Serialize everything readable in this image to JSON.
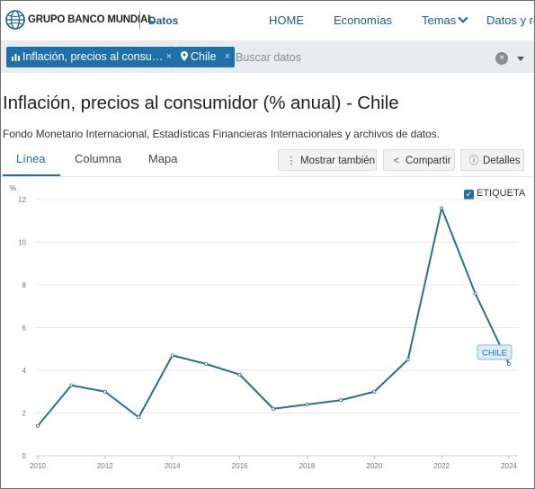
{
  "header": {
    "brand": "GRUPO BANCO MUNDIAL",
    "section": "Datos",
    "nav": [
      "HOME",
      "Economías",
      "Temas",
      "Datos y re"
    ]
  },
  "filters": {
    "indicator_chip": "Inflación, precios al consu…",
    "country_chip": "Chile",
    "search_placeholder": "Buscar datos"
  },
  "page": {
    "title": "Inflación, precios al consumidor (% anual) - Chile",
    "source": "Fondo Monetario Internacional, Estadísticas Financieras Internacionales y archivos de datos."
  },
  "tabs": [
    "Línea",
    "Columna",
    "Mapa"
  ],
  "actions": {
    "more": "Mostrar también",
    "share": "Compartir",
    "details": "Detalles"
  },
  "label_toggle": {
    "text": "ETIQUETA",
    "checked": true
  },
  "colors": {
    "accent": "#1f6fa8",
    "line": "#2a6f94",
    "brand": "#1a5d87"
  },
  "chart_data": {
    "type": "line",
    "ylabel": "%",
    "ylim": [
      0,
      12
    ],
    "yticks": [
      0,
      2,
      4,
      6,
      8,
      10,
      12
    ],
    "xlim": [
      2010,
      2024
    ],
    "xticks": [
      2010,
      2012,
      2014,
      2016,
      2018,
      2020,
      2022,
      2024
    ],
    "series": [
      {
        "name": "CHILE",
        "x": [
          2010,
          2011,
          2012,
          2013,
          2014,
          2015,
          2016,
          2017,
          2018,
          2019,
          2020,
          2021,
          2022,
          2023,
          2024
        ],
        "values": [
          1.4,
          3.3,
          3.0,
          1.8,
          4.7,
          4.3,
          3.8,
          2.2,
          2.4,
          2.6,
          3.0,
          4.5,
          11.6,
          7.6,
          4.3
        ]
      }
    ],
    "grid": "horizontal"
  }
}
